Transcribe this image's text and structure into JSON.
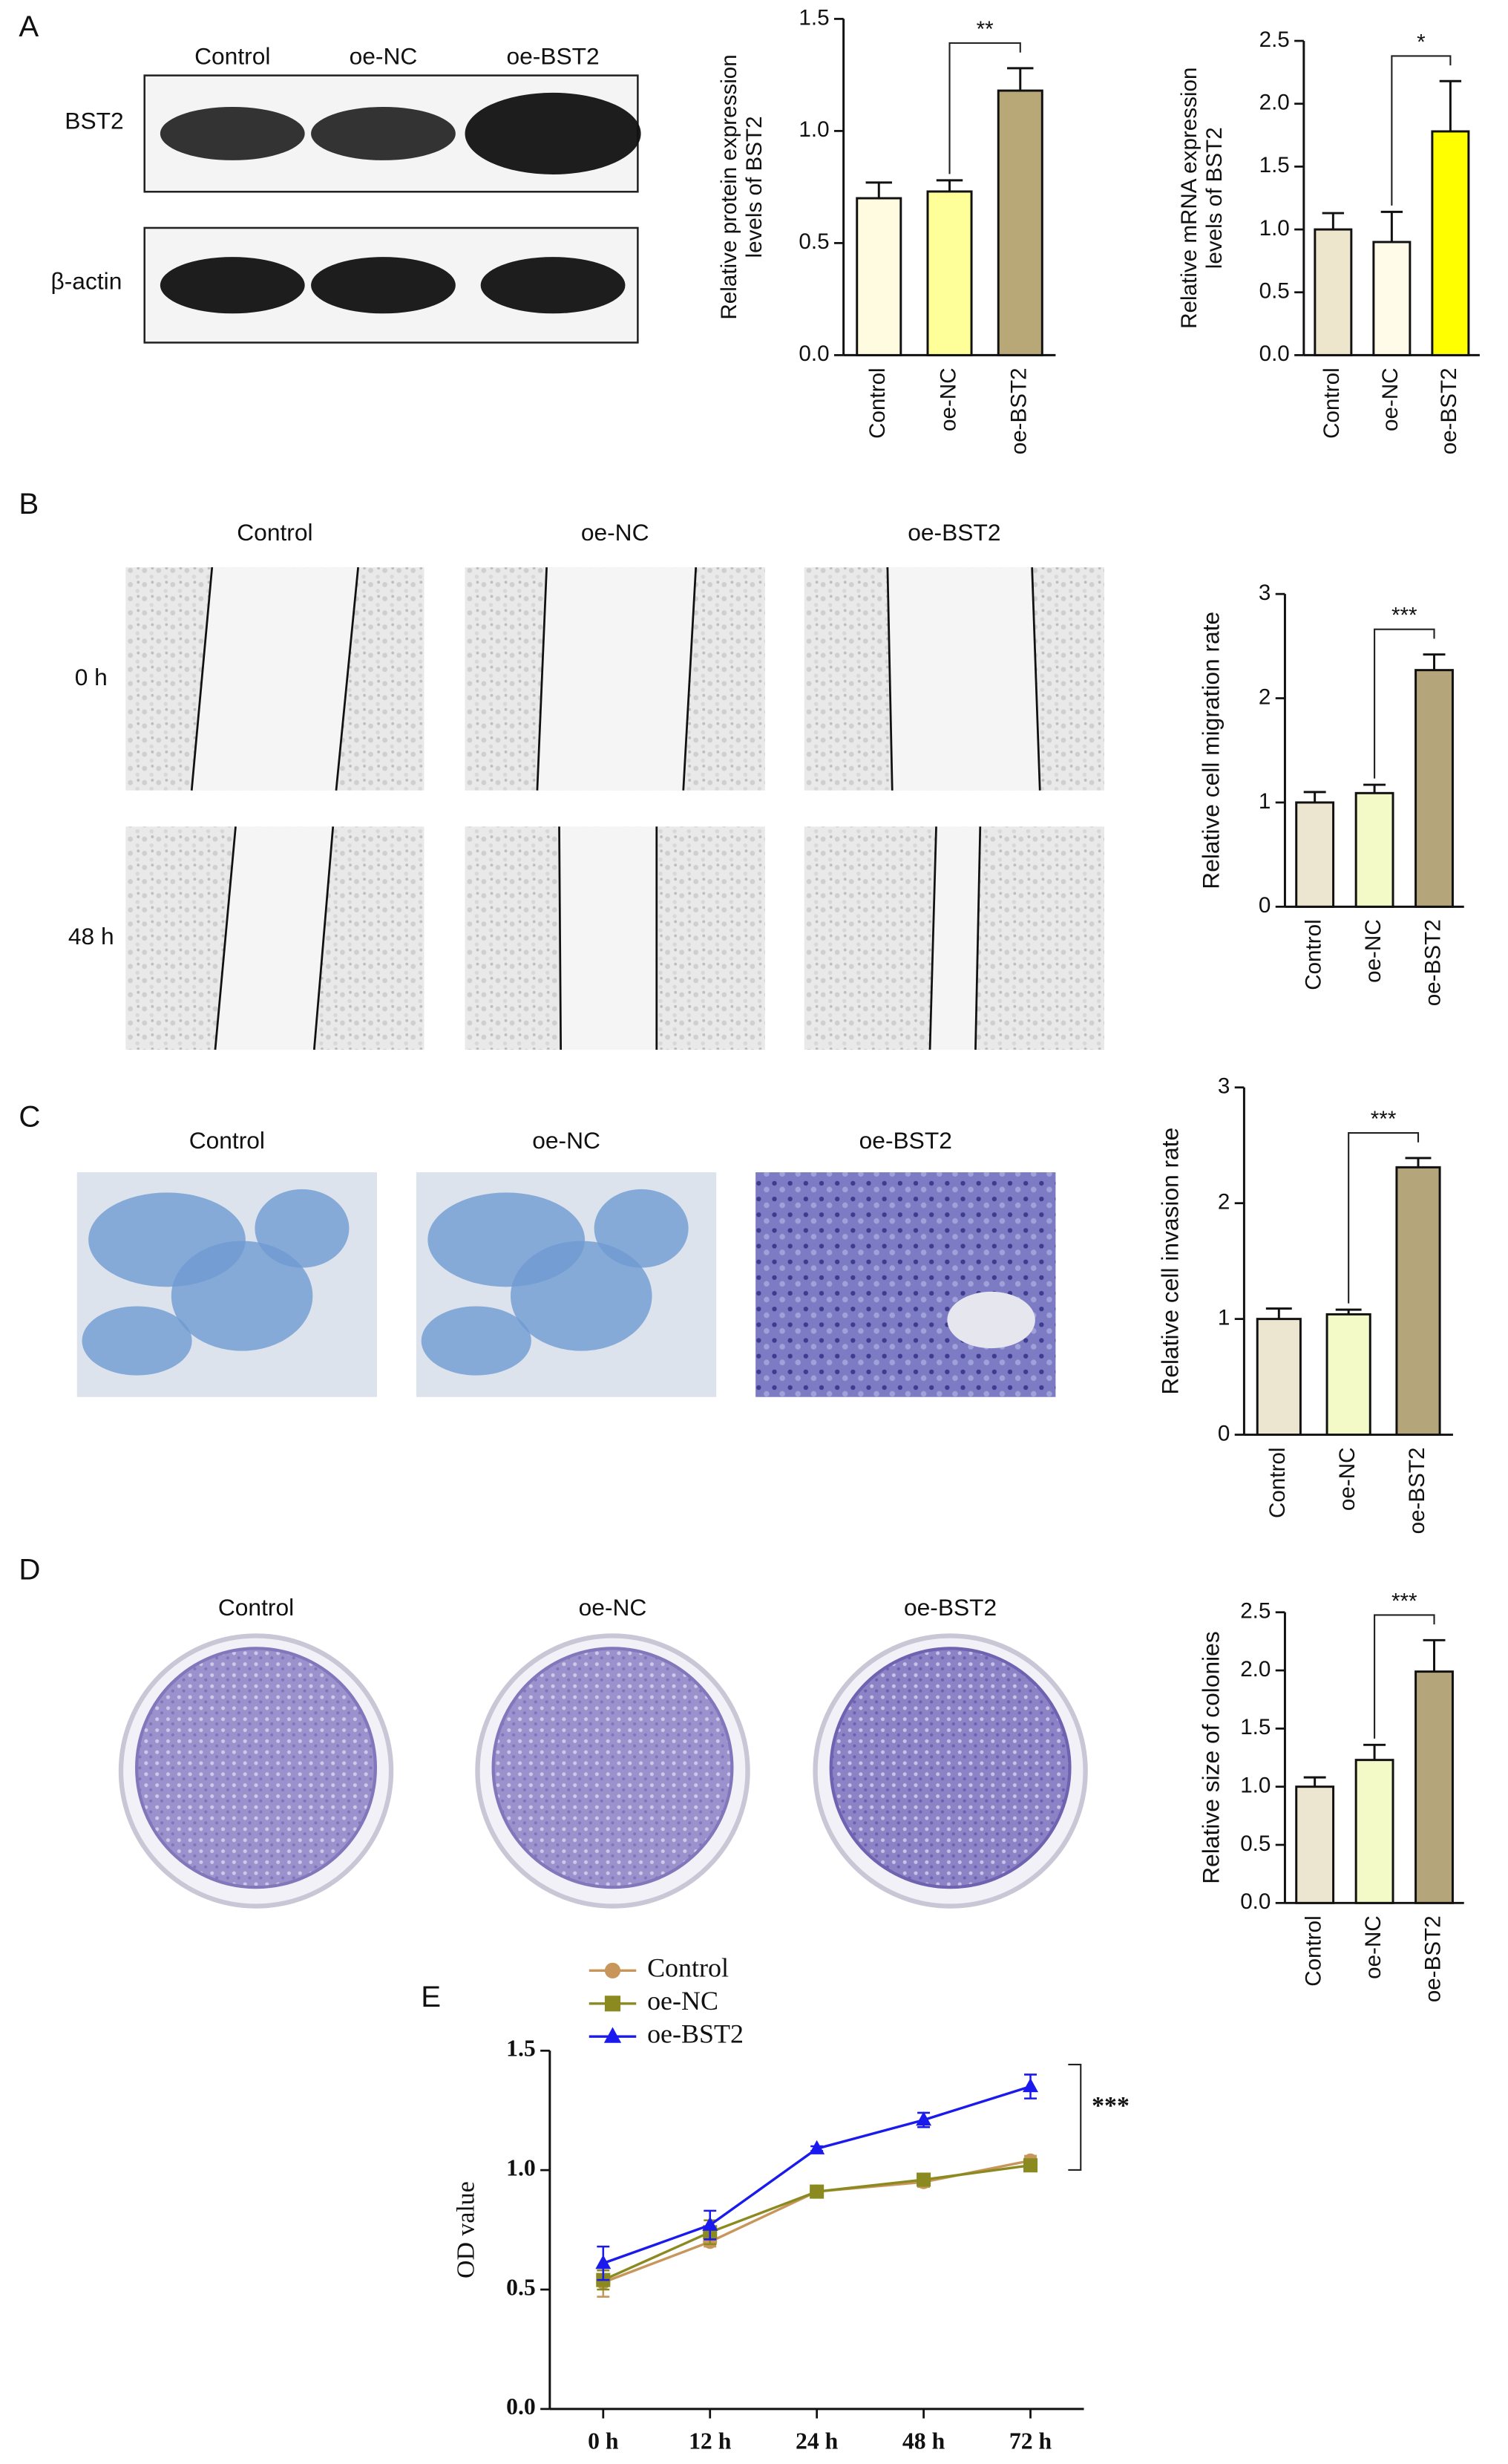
{
  "panels": {
    "A": {
      "letter": "A",
      "blot_columns": [
        "Control",
        "oe-NC",
        "oe-BST2"
      ],
      "blot_rows": [
        "BST2",
        "β-actin"
      ]
    },
    "B": {
      "letter": "B",
      "columns": [
        "Control",
        "oe-NC",
        "oe-BST2"
      ],
      "rows": [
        "0 h",
        "48 h"
      ]
    },
    "C": {
      "letter": "C",
      "columns": [
        "Control",
        "oe-NC",
        "oe-BST2"
      ]
    },
    "D": {
      "letter": "D",
      "columns": [
        "Control",
        "oe-NC",
        "oe-BST2"
      ]
    },
    "E": {
      "letter": "E"
    }
  },
  "chart_data": [
    {
      "type": "bar",
      "ylabel": [
        "Relative protein expression",
        "levels of BST2"
      ],
      "categories": [
        "Control",
        "oe-NC",
        "oe-BST2"
      ],
      "values": [
        0.7,
        0.73,
        1.18
      ],
      "errors": [
        0.07,
        0.05,
        0.1
      ],
      "colors": [
        "#fffbe0",
        "#ffff99",
        "#b8a878"
      ],
      "ylim": [
        0,
        1.5
      ],
      "yticks": [
        {
          "value": 0,
          "label": "0.0"
        },
        0.5,
        {
          "value": 1,
          "label": "1.0"
        },
        1.5
      ],
      "annotation": "**"
    },
    {
      "type": "bar",
      "ylabel": [
        "Relative mRNA expression",
        "levels of BST2"
      ],
      "categories": [
        "Control",
        "oe-NC",
        "oe-BST2"
      ],
      "values": [
        1.0,
        0.9,
        1.78
      ],
      "errors": [
        0.13,
        0.24,
        0.4
      ],
      "colors": [
        "#ede6cc",
        "#fffbe8",
        "#ffff00"
      ],
      "ylim": [
        0,
        2.5
      ],
      "yticks": [
        {
          "value": 0,
          "label": "0.0"
        },
        0.5,
        {
          "value": 1,
          "label": "1.0"
        },
        1.5,
        {
          "value": 2,
          "label": "2.0"
        },
        2.5
      ],
      "annotation": "*"
    },
    {
      "type": "bar",
      "ylabel": "Relative cell migration rate",
      "categories": [
        "Control",
        "oe-NC",
        "oe-BST2"
      ],
      "values": [
        1.0,
        1.09,
        2.27
      ],
      "errors": [
        0.1,
        0.08,
        0.15
      ],
      "colors": [
        "#ece5cf",
        "#f4f9c8",
        "#b5a57a"
      ],
      "ylim": [
        0,
        3
      ],
      "yticks": [
        0,
        1,
        2,
        3
      ],
      "annotation": "***"
    },
    {
      "type": "bar",
      "ylabel": "Relative cell invasion rate",
      "categories": [
        "Control",
        "oe-NC",
        "oe-BST2"
      ],
      "values": [
        1.0,
        1.04,
        2.31
      ],
      "errors": [
        0.09,
        0.04,
        0.08
      ],
      "colors": [
        "#ece5cf",
        "#f4f9c8",
        "#b5a57a"
      ],
      "ylim": [
        0,
        3
      ],
      "yticks": [
        0,
        1,
        2,
        3
      ],
      "annotation": "***"
    },
    {
      "type": "bar",
      "ylabel": "Relative size of colonies",
      "categories": [
        "Control",
        "oe-NC",
        "oe-BST2"
      ],
      "values": [
        1.0,
        1.23,
        1.99
      ],
      "errors": [
        0.08,
        0.13,
        0.27
      ],
      "colors": [
        "#ece5cf",
        "#f4f9c8",
        "#b5a57a"
      ],
      "ylim": [
        0,
        2.5
      ],
      "yticks": [
        {
          "value": 0,
          "label": "0.0"
        },
        0.5,
        {
          "value": 1,
          "label": "1.0"
        },
        1.5,
        {
          "value": 2,
          "label": "2.0"
        },
        2.5
      ],
      "annotation": "***"
    },
    {
      "type": "line",
      "ylabel": "OD value",
      "categories": [
        "0 h",
        "12 h",
        "24 h",
        "48 h",
        "72 h"
      ],
      "series": [
        {
          "name": "Control",
          "color": "#c8965a",
          "marker": "circle",
          "values": [
            0.53,
            0.7,
            0.91,
            0.95,
            1.04
          ],
          "errors": [
            0.06,
            0.02,
            0.02,
            0.02,
            0.02
          ]
        },
        {
          "name": "oe-NC",
          "color": "#8a8a20",
          "marker": "square",
          "values": [
            0.54,
            0.74,
            0.91,
            0.96,
            1.02
          ],
          "errors": [
            0.04,
            0.05,
            0.02,
            0.02,
            0.02
          ]
        },
        {
          "name": "oe-BST2",
          "color": "#1a1aee",
          "marker": "triangle",
          "values": [
            0.61,
            0.77,
            1.09,
            1.21,
            1.35
          ],
          "errors": [
            0.07,
            0.06,
            0.01,
            0.03,
            0.05
          ]
        }
      ],
      "ylim": [
        0,
        1.5
      ],
      "yticks": [
        {
          "value": 0,
          "label": "0.0"
        },
        0.5,
        {
          "value": 1,
          "label": "1.0"
        },
        1.5
      ],
      "annotation": "***"
    }
  ]
}
